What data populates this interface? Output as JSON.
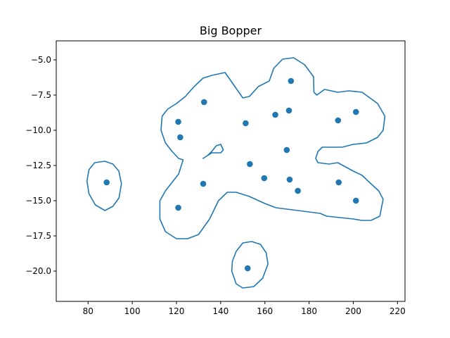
{
  "chart_data": {
    "type": "scatter",
    "title": "Big Bopper",
    "xlabel": "",
    "ylabel": "",
    "xlim": [
      65.6,
      223.4
    ],
    "ylim": [
      -22.15,
      -3.65
    ],
    "xticks": [
      80,
      100,
      120,
      140,
      160,
      180,
      200,
      220
    ],
    "yticks": [
      -5.0,
      -7.5,
      -10.0,
      -12.5,
      -15.0,
      -17.5,
      -20.0
    ],
    "grid": false,
    "series": [
      {
        "points": [
          {
            "x": 88.4,
            "y": -13.7
          },
          {
            "x": 120.8,
            "y": -9.4
          },
          {
            "x": 121.7,
            "y": -10.5
          },
          {
            "x": 120.8,
            "y": -15.5
          },
          {
            "x": 132.5,
            "y": -8.0
          },
          {
            "x": 132.1,
            "y": -13.8
          },
          {
            "x": 151.3,
            "y": -9.5
          },
          {
            "x": 153.2,
            "y": -12.4
          },
          {
            "x": 152.2,
            "y": -19.8
          },
          {
            "x": 159.7,
            "y": -13.4
          },
          {
            "x": 164.7,
            "y": -8.9
          },
          {
            "x": 170.9,
            "y": -8.6
          },
          {
            "x": 169.9,
            "y": -11.4
          },
          {
            "x": 171.8,
            "y": -6.5
          },
          {
            "x": 171.2,
            "y": -13.5
          },
          {
            "x": 174.9,
            "y": -14.3
          },
          {
            "x": 193.1,
            "y": -9.3
          },
          {
            "x": 193.4,
            "y": -13.7
          },
          {
            "x": 201.2,
            "y": -8.7
          },
          {
            "x": 201.2,
            "y": -15.0
          }
        ]
      }
    ],
    "outline": [
      [
        [
          95.1,
          -13.8
        ],
        [
          94.0,
          -14.8
        ],
        [
          91.2,
          -15.4
        ],
        [
          87.6,
          -15.7
        ],
        [
          83.3,
          -15.3
        ],
        [
          80.4,
          -14.5
        ],
        [
          79.5,
          -13.6
        ],
        [
          80.4,
          -12.8
        ],
        [
          83.0,
          -12.3
        ],
        [
          87.6,
          -12.2
        ],
        [
          91.2,
          -12.4
        ],
        [
          93.9,
          -12.9
        ],
        [
          95.1,
          -13.8
        ]
      ],
      [
        [
          145.0,
          -20.0
        ],
        [
          147.0,
          -20.9
        ],
        [
          150.0,
          -21.2
        ],
        [
          155.0,
          -21.1
        ],
        [
          159.0,
          -20.5
        ],
        [
          161.4,
          -19.5
        ],
        [
          160.6,
          -18.7
        ],
        [
          158.0,
          -18.1
        ],
        [
          154.0,
          -17.9
        ],
        [
          150.0,
          -18.0
        ],
        [
          147.0,
          -18.6
        ],
        [
          145.3,
          -19.3
        ],
        [
          145.0,
          -20.0
        ]
      ],
      [
        [
          142.0,
          -5.9
        ],
        [
          146.0,
          -6.8
        ],
        [
          150.0,
          -7.7
        ],
        [
          153.0,
          -7.6
        ],
        [
          157.0,
          -6.9
        ],
        [
          162.0,
          -6.5
        ],
        [
          164.0,
          -5.6
        ],
        [
          168.0,
          -4.95
        ],
        [
          173.0,
          -4.85
        ],
        [
          178.0,
          -5.35
        ],
        [
          182.0,
          -6.2
        ],
        [
          182.2,
          -7.3
        ],
        [
          183.5,
          -7.5
        ],
        [
          187.0,
          -7.1
        ],
        [
          193.0,
          -7.3
        ],
        [
          198.0,
          -7.2
        ],
        [
          204.0,
          -7.3
        ],
        [
          211.0,
          -8.1
        ],
        [
          214.3,
          -9.0
        ],
        [
          213.5,
          -10.0
        ],
        [
          211.0,
          -10.5
        ],
        [
          206.0,
          -10.9
        ],
        [
          200.0,
          -11.0
        ],
        [
          195.0,
          -11.2
        ],
        [
          190.0,
          -11.2
        ],
        [
          186.0,
          -11.2
        ],
        [
          184.0,
          -11.5
        ],
        [
          183.0,
          -12.0
        ],
        [
          184.0,
          -12.3
        ],
        [
          189.0,
          -12.4
        ],
        [
          193.0,
          -12.3
        ],
        [
          200.0,
          -12.9
        ],
        [
          204.0,
          -13.2
        ],
        [
          208.0,
          -13.8
        ],
        [
          211.5,
          -14.3
        ],
        [
          213.5,
          -14.9
        ],
        [
          212.0,
          -16.1
        ],
        [
          208.0,
          -16.4
        ],
        [
          204.0,
          -16.4
        ],
        [
          200.0,
          -16.3
        ],
        [
          194.0,
          -16.2
        ],
        [
          188.0,
          -16.1
        ],
        [
          185.0,
          -15.9
        ],
        [
          180.0,
          -15.8
        ],
        [
          175.0,
          -15.7
        ],
        [
          170.0,
          -15.6
        ],
        [
          165.0,
          -15.5
        ],
        [
          160.0,
          -15.2
        ],
        [
          153.0,
          -14.7
        ],
        [
          147.0,
          -14.4
        ],
        [
          143.0,
          -14.4
        ],
        [
          139.0,
          -15.0
        ],
        [
          135.0,
          -16.3
        ],
        [
          130.0,
          -17.4
        ],
        [
          125.0,
          -17.7
        ],
        [
          120.0,
          -17.7
        ],
        [
          115.0,
          -17.2
        ],
        [
          112.5,
          -16.3
        ],
        [
          112.5,
          -15.0
        ],
        [
          115.0,
          -14.3
        ],
        [
          118.0,
          -13.7
        ],
        [
          121.0,
          -13.1
        ],
        [
          123.0,
          -12.1
        ],
        [
          121.0,
          -12.0
        ],
        [
          118.0,
          -11.5
        ],
        [
          115.0,
          -10.9
        ],
        [
          113.0,
          -10.0
        ],
        [
          113.5,
          -9.0
        ],
        [
          116.0,
          -8.5
        ],
        [
          120.0,
          -8.1
        ],
        [
          124.0,
          -7.6
        ],
        [
          128.0,
          -6.9
        ],
        [
          132.0,
          -6.3
        ],
        [
          136.0,
          -6.1
        ],
        [
          142.0,
          -5.9
        ]
      ],
      [
        [
          136.0,
          -11.5
        ],
        [
          138.0,
          -11.1
        ],
        [
          140.0,
          -11.0
        ],
        [
          141.2,
          -11.4
        ],
        [
          140.0,
          -11.6
        ],
        [
          138.0,
          -11.6
        ],
        [
          136.0,
          -11.6
        ],
        [
          134.0,
          -11.8
        ],
        [
          132.0,
          -12.0
        ],
        [
          134.0,
          -11.8
        ],
        [
          136.0,
          -11.5
        ]
      ]
    ],
    "colors": {
      "series": "#1f77b4",
      "axes": "#000000",
      "background": "#ffffff"
    }
  }
}
